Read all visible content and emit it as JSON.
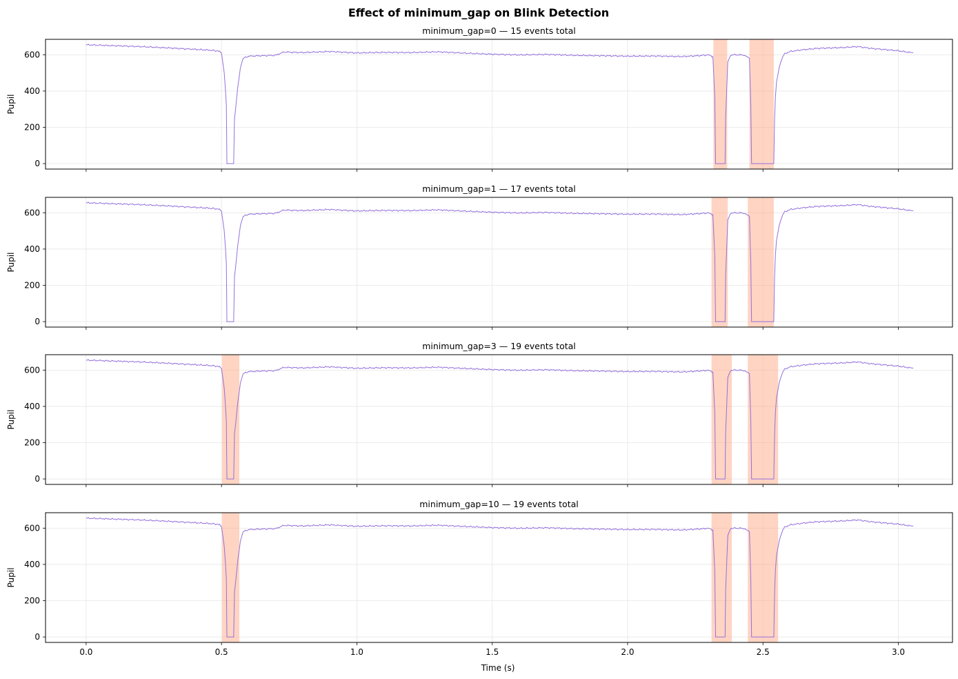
{
  "figure": {
    "title": "Effect of minimum_gap on Blink Detection",
    "xlabel": "Time (s)"
  },
  "chart_data": [
    {
      "type": "line",
      "title": "minimum_gap=0 — 15 events total",
      "ylabel": "Pupil",
      "xlim": [
        -0.15,
        3.2
      ],
      "ylim": [
        -30,
        685
      ],
      "xticks": [
        0.0,
        0.5,
        1.0,
        1.5,
        2.0,
        2.5,
        3.0
      ],
      "yticks": [
        0,
        200,
        400,
        600
      ],
      "grid": true,
      "line_color": "#9370DB",
      "span_color": "#FFA07A",
      "blink_spans": [
        [
          2.317,
          2.368
        ],
        [
          2.45,
          2.54
        ]
      ],
      "pupil_trace": {
        "x": [
          0.0,
          0.1,
          0.2,
          0.3,
          0.4,
          0.46,
          0.49,
          0.5,
          0.51,
          0.515,
          0.518,
          0.52,
          0.545,
          0.548,
          0.552,
          0.56,
          0.57,
          0.58,
          0.6,
          0.65,
          0.7,
          0.73,
          0.8,
          0.9,
          1.0,
          1.1,
          1.2,
          1.3,
          1.4,
          1.5,
          1.6,
          1.7,
          1.8,
          1.9,
          2.0,
          2.1,
          2.2,
          2.25,
          2.29,
          2.3,
          2.315,
          2.322,
          2.325,
          2.328,
          2.33,
          2.36,
          2.362,
          2.366,
          2.37,
          2.38,
          2.4,
          2.43,
          2.45,
          2.455,
          2.458,
          2.46,
          2.54,
          2.543,
          2.546,
          2.55,
          2.56,
          2.57,
          2.58,
          2.6,
          2.65,
          2.7,
          2.8,
          2.85,
          2.9,
          3.0,
          3.055
        ],
        "y": [
          655,
          650,
          645,
          638,
          630,
          625,
          620,
          610,
          500,
          400,
          320,
          0,
          0,
          250,
          300,
          420,
          530,
          580,
          592,
          595,
          597,
          615,
          612,
          618,
          610,
          613,
          612,
          616,
          609,
          603,
          599,
          602,
          597,
          595,
          592,
          593,
          590,
          594,
          598,
          598,
          590,
          360,
          0,
          0,
          0,
          0,
          250,
          400,
          560,
          598,
          600,
          598,
          580,
          320,
          0,
          0,
          0,
          250,
          370,
          450,
          530,
          580,
          605,
          618,
          628,
          635,
          640,
          645,
          635,
          622,
          610
        ]
      }
    },
    {
      "type": "line",
      "title": "minimum_gap=1 — 17 events total",
      "ylabel": "Pupil",
      "xlim": [
        -0.15,
        3.2
      ],
      "ylim": [
        -30,
        685
      ],
      "xticks": [
        0.0,
        0.5,
        1.0,
        1.5,
        2.0,
        2.5,
        3.0
      ],
      "yticks": [
        0,
        200,
        400,
        600
      ],
      "grid": true,
      "line_color": "#9370DB",
      "span_color": "#FFA07A",
      "blink_spans": [
        [
          2.31,
          2.37
        ],
        [
          2.444,
          2.54
        ]
      ],
      "pupil_trace": {
        "x": [
          0.0,
          0.1,
          0.2,
          0.3,
          0.4,
          0.46,
          0.49,
          0.5,
          0.51,
          0.515,
          0.518,
          0.52,
          0.545,
          0.548,
          0.552,
          0.56,
          0.57,
          0.58,
          0.6,
          0.65,
          0.7,
          0.73,
          0.8,
          0.9,
          1.0,
          1.1,
          1.2,
          1.3,
          1.4,
          1.5,
          1.6,
          1.7,
          1.8,
          1.9,
          2.0,
          2.1,
          2.2,
          2.25,
          2.29,
          2.3,
          2.315,
          2.322,
          2.325,
          2.328,
          2.33,
          2.36,
          2.362,
          2.366,
          2.37,
          2.38,
          2.4,
          2.43,
          2.45,
          2.455,
          2.458,
          2.46,
          2.54,
          2.543,
          2.546,
          2.55,
          2.56,
          2.57,
          2.58,
          2.6,
          2.65,
          2.7,
          2.8,
          2.85,
          2.9,
          3.0,
          3.055
        ],
        "y": [
          655,
          650,
          645,
          638,
          630,
          625,
          620,
          610,
          500,
          400,
          320,
          0,
          0,
          250,
          300,
          420,
          530,
          580,
          592,
          595,
          597,
          615,
          612,
          618,
          610,
          613,
          612,
          616,
          609,
          603,
          599,
          602,
          597,
          595,
          592,
          593,
          590,
          594,
          598,
          598,
          590,
          360,
          0,
          0,
          0,
          0,
          250,
          400,
          560,
          598,
          600,
          598,
          580,
          320,
          0,
          0,
          0,
          250,
          370,
          450,
          530,
          580,
          605,
          618,
          628,
          635,
          640,
          645,
          635,
          622,
          610
        ]
      }
    },
    {
      "type": "line",
      "title": "minimum_gap=3 — 19 events total",
      "ylabel": "Pupil",
      "xlim": [
        -0.15,
        3.2
      ],
      "ylim": [
        -30,
        685
      ],
      "xticks": [
        0.0,
        0.5,
        1.0,
        1.5,
        2.0,
        2.5,
        3.0
      ],
      "yticks": [
        0,
        200,
        400,
        600
      ],
      "grid": true,
      "line_color": "#9370DB",
      "span_color": "#FFA07A",
      "blink_spans": [
        [
          0.502,
          0.566
        ],
        [
          2.31,
          2.385
        ],
        [
          2.444,
          2.556
        ]
      ],
      "pupil_trace": {
        "x": [
          0.0,
          0.1,
          0.2,
          0.3,
          0.4,
          0.46,
          0.49,
          0.5,
          0.51,
          0.515,
          0.518,
          0.52,
          0.545,
          0.548,
          0.552,
          0.56,
          0.57,
          0.58,
          0.6,
          0.65,
          0.7,
          0.73,
          0.8,
          0.9,
          1.0,
          1.1,
          1.2,
          1.3,
          1.4,
          1.5,
          1.6,
          1.7,
          1.8,
          1.9,
          2.0,
          2.1,
          2.2,
          2.25,
          2.29,
          2.3,
          2.315,
          2.322,
          2.325,
          2.328,
          2.33,
          2.36,
          2.362,
          2.366,
          2.37,
          2.38,
          2.4,
          2.43,
          2.45,
          2.455,
          2.458,
          2.46,
          2.54,
          2.543,
          2.546,
          2.55,
          2.56,
          2.57,
          2.58,
          2.6,
          2.65,
          2.7,
          2.8,
          2.85,
          2.9,
          3.0,
          3.055
        ],
        "y": [
          655,
          650,
          645,
          638,
          630,
          625,
          620,
          610,
          500,
          400,
          320,
          0,
          0,
          250,
          300,
          420,
          530,
          580,
          592,
          595,
          597,
          615,
          612,
          618,
          610,
          613,
          612,
          616,
          609,
          603,
          599,
          602,
          597,
          595,
          592,
          593,
          590,
          594,
          598,
          598,
          590,
          360,
          0,
          0,
          0,
          0,
          250,
          400,
          560,
          598,
          600,
          598,
          580,
          320,
          0,
          0,
          0,
          250,
          370,
          450,
          530,
          580,
          605,
          618,
          628,
          635,
          640,
          645,
          635,
          622,
          610
        ]
      }
    },
    {
      "type": "line",
      "title": "minimum_gap=10 — 19 events total",
      "ylabel": "Pupil",
      "xlim": [
        -0.15,
        3.2
      ],
      "ylim": [
        -30,
        685
      ],
      "xticks": [
        0.0,
        0.5,
        1.0,
        1.5,
        2.0,
        2.5,
        3.0
      ],
      "yticks": [
        0,
        200,
        400,
        600
      ],
      "grid": true,
      "line_color": "#9370DB",
      "span_color": "#FFA07A",
      "blink_spans": [
        [
          0.502,
          0.566
        ],
        [
          2.31,
          2.385
        ],
        [
          2.444,
          2.556
        ]
      ],
      "pupil_trace": {
        "x": [
          0.0,
          0.1,
          0.2,
          0.3,
          0.4,
          0.46,
          0.49,
          0.5,
          0.51,
          0.515,
          0.518,
          0.52,
          0.545,
          0.548,
          0.552,
          0.56,
          0.57,
          0.58,
          0.6,
          0.65,
          0.7,
          0.73,
          0.8,
          0.9,
          1.0,
          1.1,
          1.2,
          1.3,
          1.4,
          1.5,
          1.6,
          1.7,
          1.8,
          1.9,
          2.0,
          2.1,
          2.2,
          2.25,
          2.29,
          2.3,
          2.315,
          2.322,
          2.325,
          2.328,
          2.33,
          2.36,
          2.362,
          2.366,
          2.37,
          2.38,
          2.4,
          2.43,
          2.45,
          2.455,
          2.458,
          2.46,
          2.54,
          2.543,
          2.546,
          2.55,
          2.56,
          2.57,
          2.58,
          2.6,
          2.65,
          2.7,
          2.8,
          2.85,
          2.9,
          3.0,
          3.055
        ],
        "y": [
          655,
          650,
          645,
          638,
          630,
          625,
          620,
          610,
          500,
          400,
          320,
          0,
          0,
          250,
          300,
          420,
          530,
          580,
          592,
          595,
          597,
          615,
          612,
          618,
          610,
          613,
          612,
          616,
          609,
          603,
          599,
          602,
          597,
          595,
          592,
          593,
          590,
          594,
          598,
          598,
          590,
          360,
          0,
          0,
          0,
          0,
          250,
          400,
          560,
          598,
          600,
          598,
          580,
          320,
          0,
          0,
          0,
          250,
          370,
          450,
          530,
          580,
          605,
          618,
          628,
          635,
          640,
          645,
          635,
          622,
          610
        ]
      }
    }
  ]
}
